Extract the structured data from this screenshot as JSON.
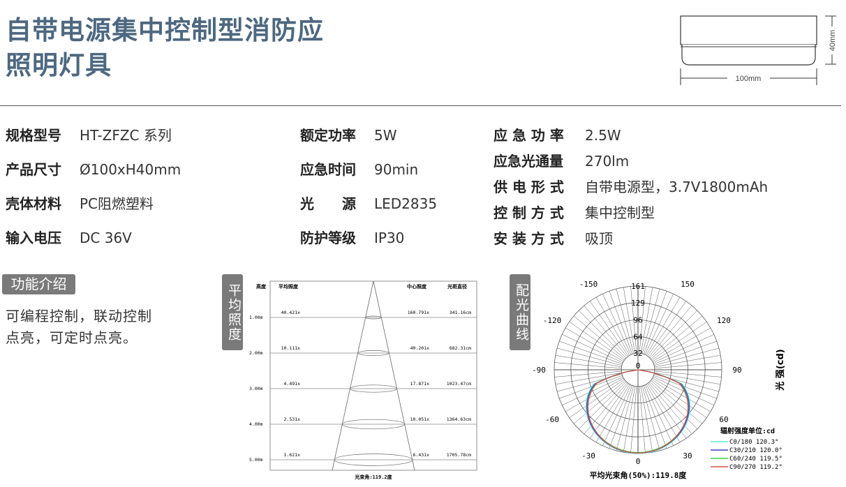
{
  "header": {
    "title_line1": "自带电源集中控制型消防应",
    "title_line2": "照明灯具"
  },
  "dimensions": {
    "width": "100mm",
    "height": "40mm"
  },
  "specs_col1": [
    {
      "label": "规格型号",
      "value": "HT-ZFZC 系列"
    },
    {
      "label": "产品尺寸",
      "value": "Ø100xH40mm"
    },
    {
      "label": "壳体材料",
      "value": "PC阻燃塑料"
    },
    {
      "label": "输入电压",
      "value": "DC 36V"
    }
  ],
  "specs_col2": [
    {
      "label": "额定功率",
      "value": "5W"
    },
    {
      "label": "应急时间",
      "value": "90min"
    },
    {
      "label": "光　　源",
      "value": "LED2835"
    },
    {
      "label": "防护等级",
      "value": "IP30"
    }
  ],
  "specs_col3": [
    {
      "label": "应 急 功 率",
      "value": "2.5W"
    },
    {
      "label": "应急光通量",
      "value": "270lm"
    },
    {
      "label": "供 电 形 式",
      "value": "自带电源型，3.7V1800mAh"
    },
    {
      "label": "控 制 方 式",
      "value": "集中控制型"
    },
    {
      "label": "安 装 方 式",
      "value": "吸顶"
    }
  ],
  "features": {
    "badge": "功能介绍",
    "line1": "可编程控制，联动控制",
    "line2": "点亮，可定时点亮。"
  },
  "illuminance": {
    "badge": "平均照度",
    "headers": [
      "高度",
      "平均照度",
      "中心照度",
      "光斑直径"
    ],
    "rows": [
      {
        "height": "1.00m",
        "avg": "40.421x",
        "center": "160.791x",
        "diameter": "341.16cm"
      },
      {
        "height": "2.00m",
        "avg": "10.111x",
        "center": "40.201x",
        "diameter": "682.31cm"
      },
      {
        "height": "3.00m",
        "avg": "4.491x",
        "center": "17.871x",
        "diameter": "1023.47cm"
      },
      {
        "height": "4.00m",
        "avg": "2.531x",
        "center": "10.051x",
        "diameter": "1364.63cm"
      },
      {
        "height": "5.00m",
        "avg": "1.621x",
        "center": "6.431x",
        "diameter": "1705.78cm"
      }
    ],
    "beam_angle": "光束角:119.2度"
  },
  "chart_data": {
    "type": "polar",
    "badge": "配光曲线",
    "radial_ticks": [
      "0",
      "32",
      "64",
      "96",
      "129",
      "161"
    ],
    "radial_max": 161,
    "angle_labels": {
      "-150": "-150",
      "150": "150",
      "-120": "-120",
      "120": "120",
      "-90": "-90",
      "90": "90",
      "-60": "-60",
      "60": "60",
      "-30": "-30",
      "30": "30",
      "0": "0"
    },
    "axis_label": "光 强(cd)",
    "legend_title": "辐射强度单位:cd",
    "series": [
      {
        "name": "C0/180 120.3°",
        "color": "#5fe8e8",
        "peak": 161
      },
      {
        "name": "C30/210 120.0°",
        "color": "#3a3ac8",
        "peak": 160
      },
      {
        "name": "C60/240 119.5°",
        "color": "#3cd23c",
        "peak": 159
      },
      {
        "name": "C90/270 119.2°",
        "color": "#d85050",
        "peak": 160
      }
    ],
    "average_beam_angle": "平均光束角(50%):119.8度"
  }
}
